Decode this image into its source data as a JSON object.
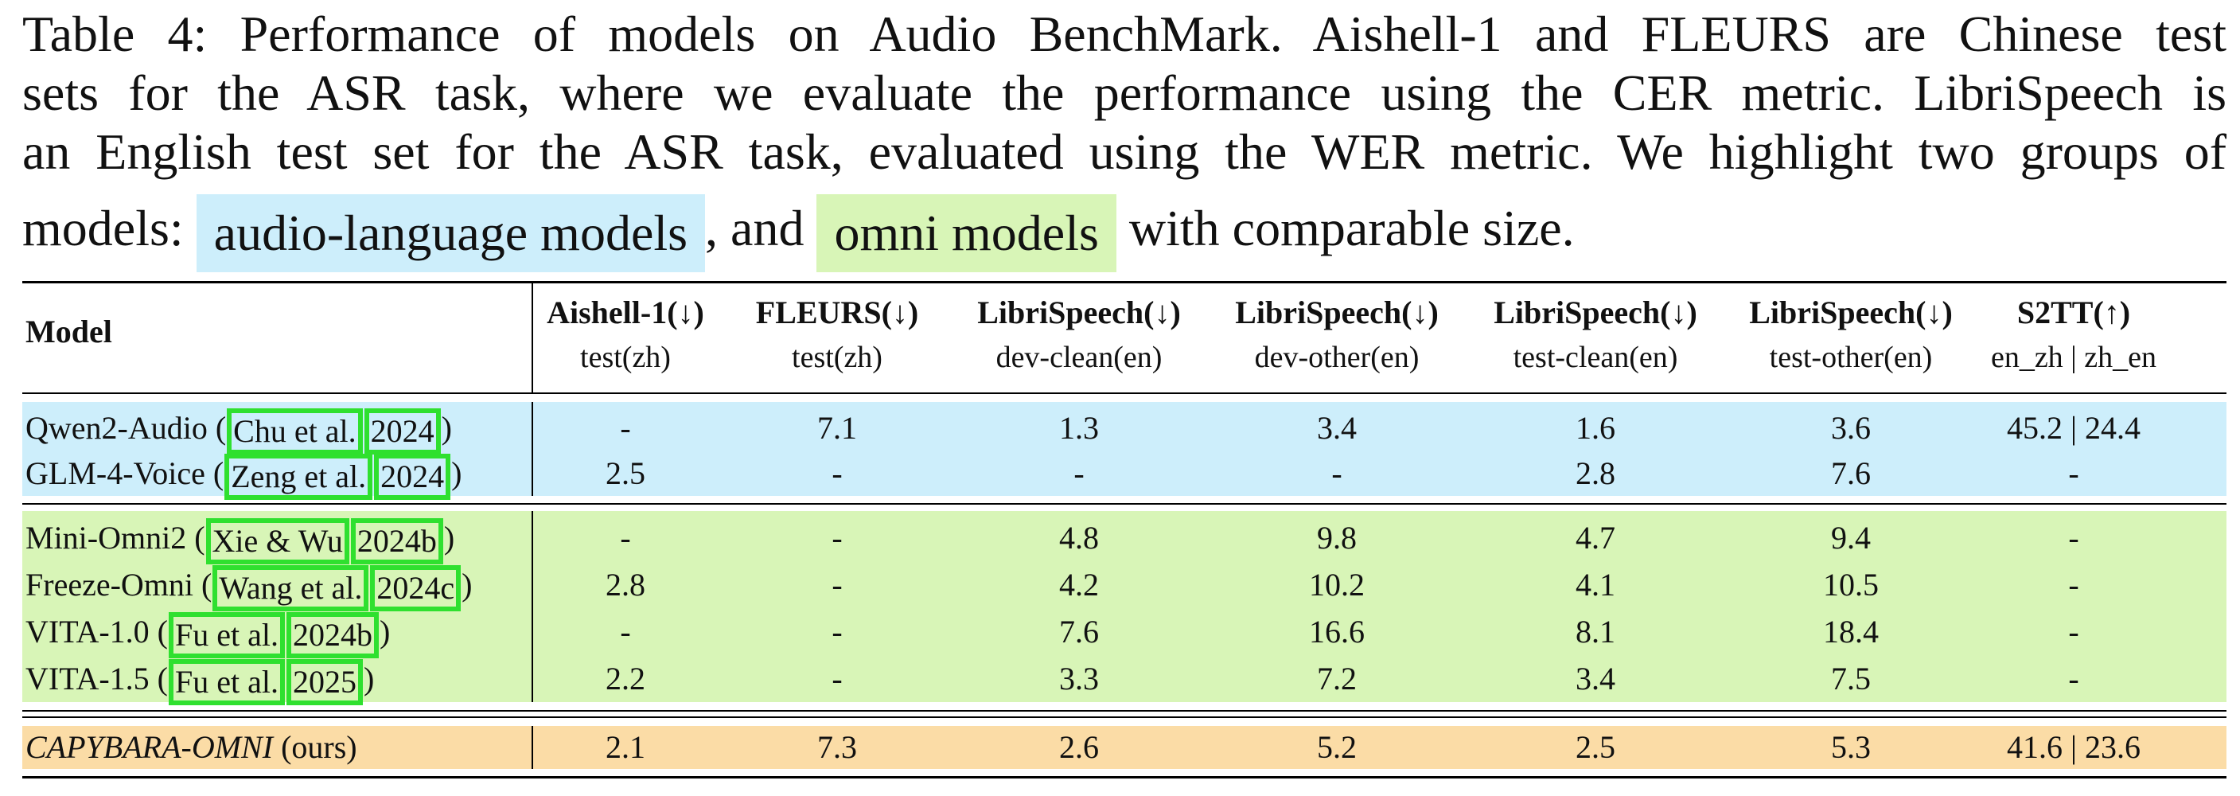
{
  "caption": {
    "line1": "Table 4:  Performance of models on Audio BenchMark. Aishell-1 and FLEURS are Chinese test",
    "line2": "sets for the ASR task, where we evaluate the performance using the CER metric. LibriSpeech is",
    "line3": "an English test set for the ASR task, evaluated using the WER metric. We highlight two groups of",
    "line4_pre": "models:",
    "highlight_audio": "audio-language models",
    "line4_mid": ", and",
    "highlight_omni": "omni models",
    "line4_post": "with comparable size."
  },
  "colors": {
    "audio_group_bg": "#cdeefb",
    "omni_group_bg": "#d8f5b7",
    "ours_bg": "#fbdca6",
    "citation_box": "#2fe02f"
  },
  "table": {
    "model_header": "Model",
    "columns": [
      {
        "title": "Aishell-1(↓)",
        "subtitle": "test(zh)"
      },
      {
        "title": "FLEURS(↓)",
        "subtitle": "test(zh)"
      },
      {
        "title": "LibriSpeech(↓)",
        "subtitle": "dev-clean(en)"
      },
      {
        "title": "LibriSpeech(↓)",
        "subtitle": "dev-other(en)"
      },
      {
        "title": "LibriSpeech(↓)",
        "subtitle": "test-clean(en)"
      },
      {
        "title": "LibriSpeech(↓)",
        "subtitle": "test-other(en)"
      },
      {
        "title": "S2TT(↑)",
        "subtitle": "en_zh | zh_en"
      }
    ],
    "rows": [
      {
        "name": "Qwen2-Audio (",
        "cite_author": "Chu et al.",
        "cite_year": "2024",
        "close": ")",
        "values": [
          "-",
          "7.1",
          "1.3",
          "3.4",
          "1.6",
          "3.6",
          "45.2 | 24.4"
        ]
      },
      {
        "name": "GLM-4-Voice (",
        "cite_author": "Zeng et al.",
        "cite_year": "2024",
        "close": ")",
        "values": [
          "2.5",
          "-",
          "-",
          "-",
          "2.8",
          "7.6",
          "-"
        ]
      },
      {
        "name": "Mini-Omni2 (",
        "cite_author": "Xie & Wu",
        "cite_year": "2024b",
        "close": ")",
        "values": [
          "-",
          "-",
          "4.8",
          "9.8",
          "4.7",
          "9.4",
          "-"
        ]
      },
      {
        "name": "Freeze-Omni  (",
        "cite_author": "Wang et al.",
        "cite_year": "2024c",
        "close": ")",
        "values": [
          "2.8",
          "-",
          "4.2",
          "10.2",
          "4.1",
          "10.5",
          "-"
        ]
      },
      {
        "name": "VITA-1.0  (",
        "cite_author": "Fu et al.",
        "cite_year": "2024b",
        "close": ")",
        "values": [
          "-",
          "-",
          "7.6",
          "16.6",
          "8.1",
          "18.4",
          "-"
        ]
      },
      {
        "name": "VITA-1.5  (",
        "cite_author": "Fu et al.",
        "cite_year": "2025",
        "close": ")",
        "values": [
          "2.2",
          "-",
          "3.3",
          "7.2",
          "3.4",
          "7.5",
          "-"
        ]
      }
    ],
    "ours": {
      "name_italic": "CAPYBARA-OMNI",
      "suffix": " (ours)",
      "values": [
        "2.1",
        "7.3",
        "2.6",
        "5.2",
        "2.5",
        "5.3",
        "41.6 | 23.6"
      ]
    }
  }
}
